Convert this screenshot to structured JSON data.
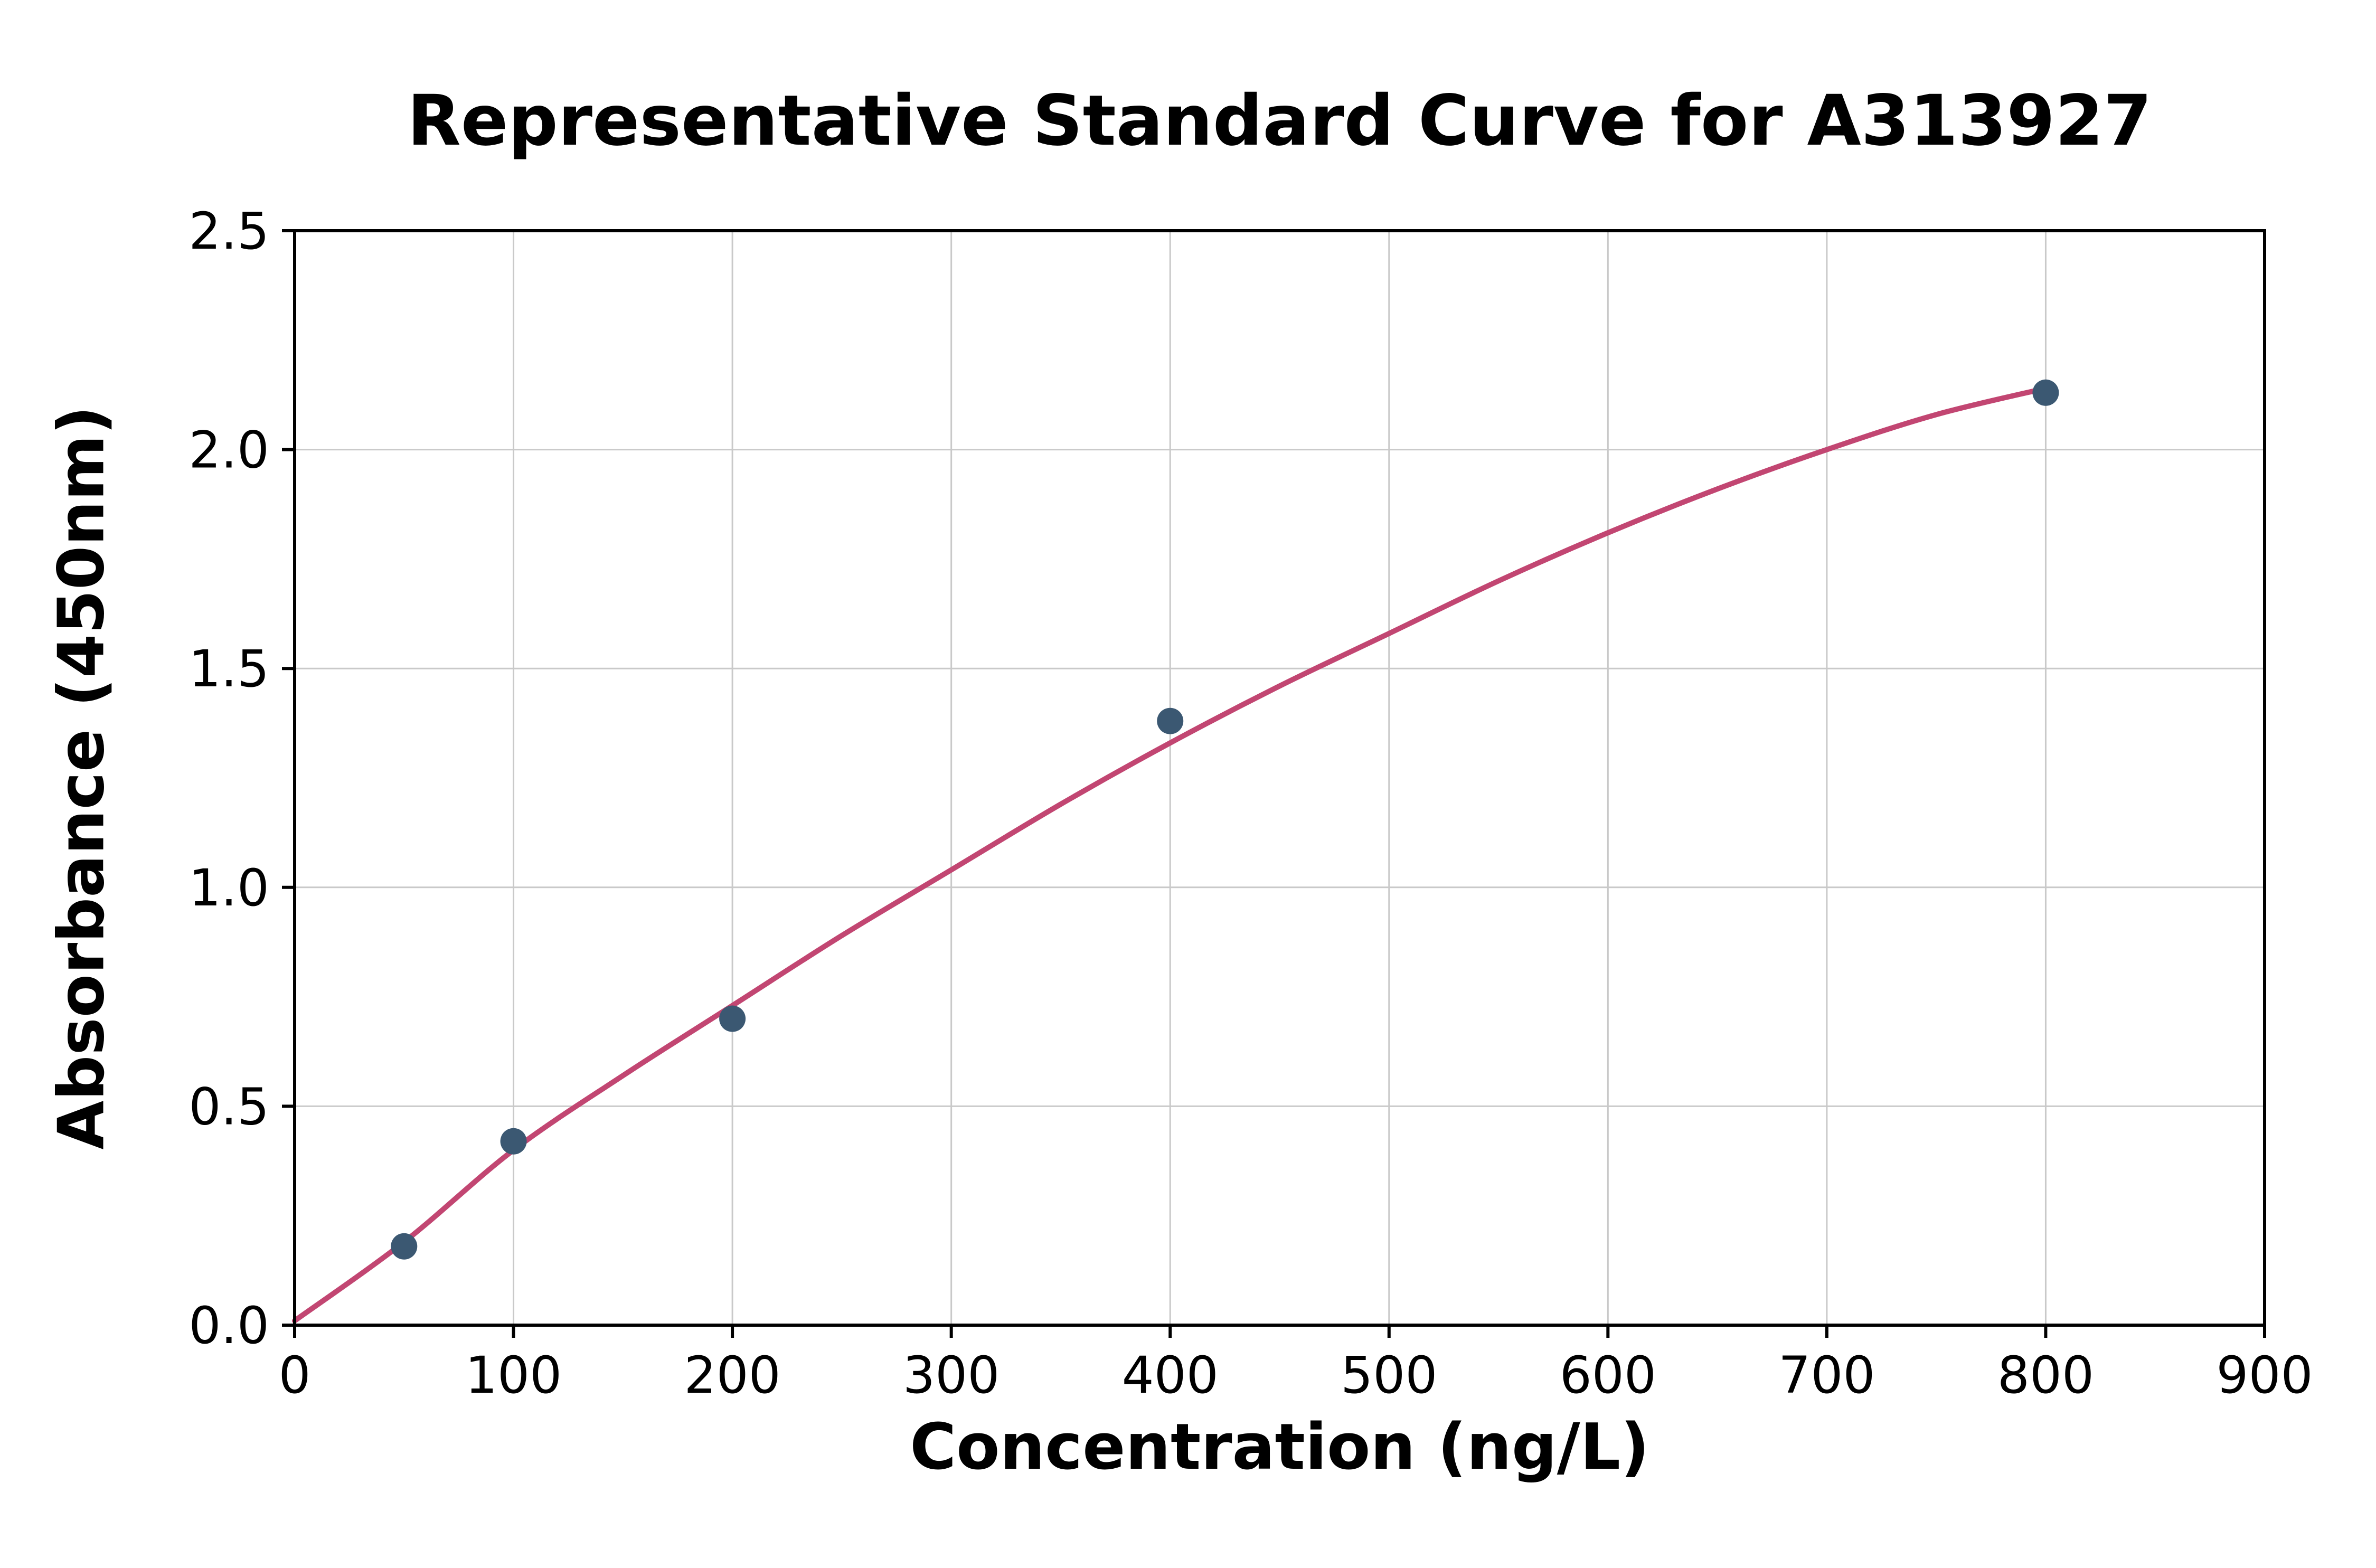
{
  "page": {
    "background": "#ffffff"
  },
  "chart_data": {
    "type": "scatter",
    "title": "Representative Standard Curve for A313927",
    "xlabel": "Concentration (ng/L)",
    "ylabel": "Absorbance (450nm)",
    "xlim": [
      0,
      900
    ],
    "ylim": [
      0,
      2.5
    ],
    "x_ticks": [
      0,
      100,
      200,
      300,
      400,
      500,
      600,
      700,
      800,
      900
    ],
    "x_tick_labels": [
      "0",
      "100",
      "200",
      "300",
      "400",
      "500",
      "600",
      "700",
      "800",
      "900"
    ],
    "y_ticks": [
      0.0,
      0.5,
      1.0,
      1.5,
      2.0,
      2.5
    ],
    "y_tick_labels": [
      "0.0",
      "0.5",
      "1.0",
      "1.5",
      "2.0",
      "2.5"
    ],
    "grid": true,
    "legend_position": "none",
    "colors": {
      "grid": "#c9c9c9",
      "axis": "#000000",
      "points": "#3b5872",
      "curve": "#c24672",
      "background": "#ffffff"
    },
    "series": [
      {
        "name": "standard-points",
        "type": "scatter",
        "color": "#3b5872",
        "points": [
          [
            50,
            0.18
          ],
          [
            100,
            0.42
          ],
          [
            200,
            0.7
          ],
          [
            400,
            1.38
          ],
          [
            800,
            2.13
          ]
        ]
      },
      {
        "name": "fit-curve",
        "type": "line",
        "color": "#c24672",
        "points": [
          [
            0,
            0.01
          ],
          [
            50,
            0.19
          ],
          [
            100,
            0.4
          ],
          [
            150,
            0.57
          ],
          [
            200,
            0.73
          ],
          [
            250,
            0.89
          ],
          [
            300,
            1.04
          ],
          [
            350,
            1.19
          ],
          [
            400,
            1.33
          ],
          [
            450,
            1.46
          ],
          [
            500,
            1.58
          ],
          [
            550,
            1.7
          ],
          [
            600,
            1.81
          ],
          [
            650,
            1.91
          ],
          [
            700,
            2.0
          ],
          [
            750,
            2.08
          ],
          [
            800,
            2.14
          ]
        ]
      }
    ]
  }
}
